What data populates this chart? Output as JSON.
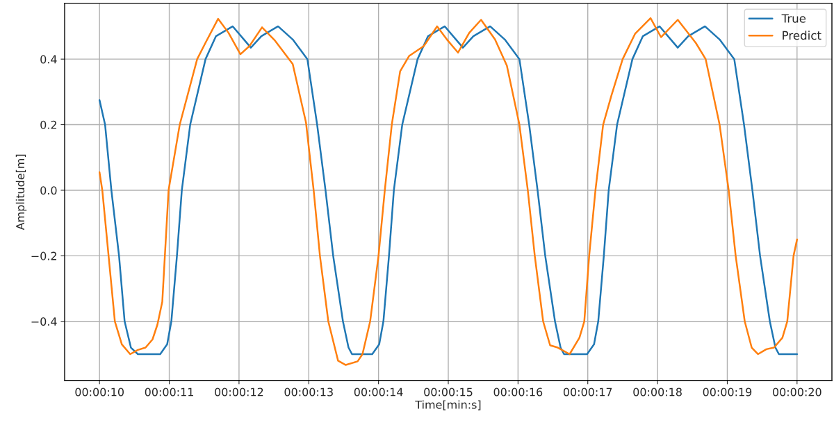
{
  "chart_data": {
    "type": "line",
    "xlabel": "Time[min:s]",
    "ylabel": "Amplitude[m]",
    "xlim": [
      9.5,
      20.5
    ],
    "ylim": [
      -0.58,
      0.57
    ],
    "xticks": [
      {
        "value": 10,
        "label": "00:00:10"
      },
      {
        "value": 11,
        "label": "00:00:11"
      },
      {
        "value": 12,
        "label": "00:00:12"
      },
      {
        "value": 13,
        "label": "00:00:13"
      },
      {
        "value": 14,
        "label": "00:00:14"
      },
      {
        "value": 15,
        "label": "00:00:15"
      },
      {
        "value": 16,
        "label": "00:00:16"
      },
      {
        "value": 17,
        "label": "00:00:17"
      },
      {
        "value": 18,
        "label": "00:00:18"
      },
      {
        "value": 19,
        "label": "00:00:19"
      },
      {
        "value": 20,
        "label": "00:00:20"
      }
    ],
    "yticks": [
      {
        "value": -0.4,
        "label": "−0.4"
      },
      {
        "value": -0.2,
        "label": "−0.2"
      },
      {
        "value": 0.0,
        "label": "0.0"
      },
      {
        "value": 0.2,
        "label": "0.2"
      },
      {
        "value": 0.4,
        "label": "0.4"
      }
    ],
    "grid": true,
    "legend": "top right",
    "marker": "none",
    "line_style": "solid",
    "series": [
      {
        "name": "True",
        "color": "#1f77b4",
        "x": [
          10,
          10.08,
          10.17,
          10.28,
          10.36,
          10.45,
          10.55,
          10.87,
          10.97,
          11.03,
          11.11,
          11.18,
          11.3,
          11.52,
          11.67,
          11.91,
          12.07,
          12.17,
          12.32,
          12.56,
          12.77,
          12.98,
          13.12,
          13.24,
          13.35,
          13.49,
          13.57,
          13.62,
          13.91,
          14.01,
          14.07,
          14.15,
          14.22,
          14.34,
          14.56,
          14.71,
          14.95,
          15.11,
          15.21,
          15.36,
          15.6,
          15.81,
          16.02,
          16.16,
          16.28,
          16.39,
          16.53,
          16.61,
          16.66,
          16.99,
          17.09,
          17.15,
          17.23,
          17.3,
          17.42,
          17.64,
          17.79,
          18.03,
          18.19,
          18.29,
          18.44,
          18.68,
          18.89,
          19.1,
          19.24,
          19.36,
          19.47,
          19.61,
          19.69,
          19.74,
          20.0
        ],
        "values": [
          0.275,
          0.2,
          0.0,
          -0.2,
          -0.4,
          -0.48,
          -0.5,
          -0.5,
          -0.47,
          -0.4,
          -0.2,
          0.0,
          0.2,
          0.4,
          0.47,
          0.5,
          0.46,
          0.435,
          0.47,
          0.5,
          0.46,
          0.4,
          0.2,
          0.0,
          -0.2,
          -0.4,
          -0.48,
          -0.5,
          -0.5,
          -0.47,
          -0.4,
          -0.2,
          0.0,
          0.2,
          0.4,
          0.47,
          0.5,
          0.46,
          0.435,
          0.47,
          0.5,
          0.46,
          0.4,
          0.2,
          0.0,
          -0.2,
          -0.4,
          -0.48,
          -0.5,
          -0.5,
          -0.47,
          -0.4,
          -0.2,
          0.0,
          0.2,
          0.4,
          0.47,
          0.5,
          0.46,
          0.435,
          0.47,
          0.5,
          0.46,
          0.4,
          0.2,
          0.0,
          -0.2,
          -0.4,
          -0.48,
          -0.5,
          -0.5
        ]
      },
      {
        "name": "Predict",
        "color": "#ff7f0e",
        "x": [
          10,
          10.04,
          10.13,
          10.22,
          10.32,
          10.44,
          10.55,
          10.66,
          10.76,
          10.83,
          10.9,
          10.99,
          11.15,
          11.4,
          11.52,
          11.7,
          11.85,
          12.02,
          12.15,
          12.33,
          12.51,
          12.61,
          12.77,
          12.96,
          13.07,
          13.16,
          13.28,
          13.42,
          13.53,
          13.7,
          13.77,
          13.88,
          14.0,
          14.09,
          14.19,
          14.31,
          14.44,
          14.65,
          14.84,
          14.98,
          15.14,
          15.3,
          15.47,
          15.67,
          15.84,
          16.02,
          16.14,
          16.24,
          16.36,
          16.46,
          16.57,
          16.74,
          16.88,
          16.95,
          17.02,
          17.11,
          17.22,
          17.34,
          17.5,
          17.68,
          17.9,
          18.05,
          18.29,
          18.55,
          18.69,
          18.89,
          19.02,
          19.12,
          19.25,
          19.35,
          19.44,
          19.56,
          19.67,
          19.79,
          19.86,
          19.95,
          20.0
        ],
        "values": [
          0.055,
          0.0,
          -0.2,
          -0.4,
          -0.47,
          -0.5,
          -0.487,
          -0.48,
          -0.455,
          -0.41,
          -0.34,
          0.0,
          0.2,
          0.4,
          0.45,
          0.523,
          0.48,
          0.415,
          0.44,
          0.497,
          0.458,
          0.43,
          0.385,
          0.207,
          0.0,
          -0.2,
          -0.4,
          -0.52,
          -0.533,
          -0.522,
          -0.5,
          -0.4,
          -0.2,
          0.0,
          0.2,
          0.363,
          0.41,
          0.44,
          0.5,
          0.46,
          0.42,
          0.48,
          0.52,
          0.46,
          0.38,
          0.2,
          0.0,
          -0.2,
          -0.4,
          -0.473,
          -0.48,
          -0.5,
          -0.45,
          -0.4,
          -0.2,
          0.0,
          0.2,
          0.29,
          0.4,
          0.478,
          0.525,
          0.467,
          0.52,
          0.449,
          0.4,
          0.2,
          0.0,
          -0.2,
          -0.4,
          -0.48,
          -0.5,
          -0.485,
          -0.48,
          -0.45,
          -0.4,
          -0.2,
          -0.15
        ]
      }
    ]
  }
}
